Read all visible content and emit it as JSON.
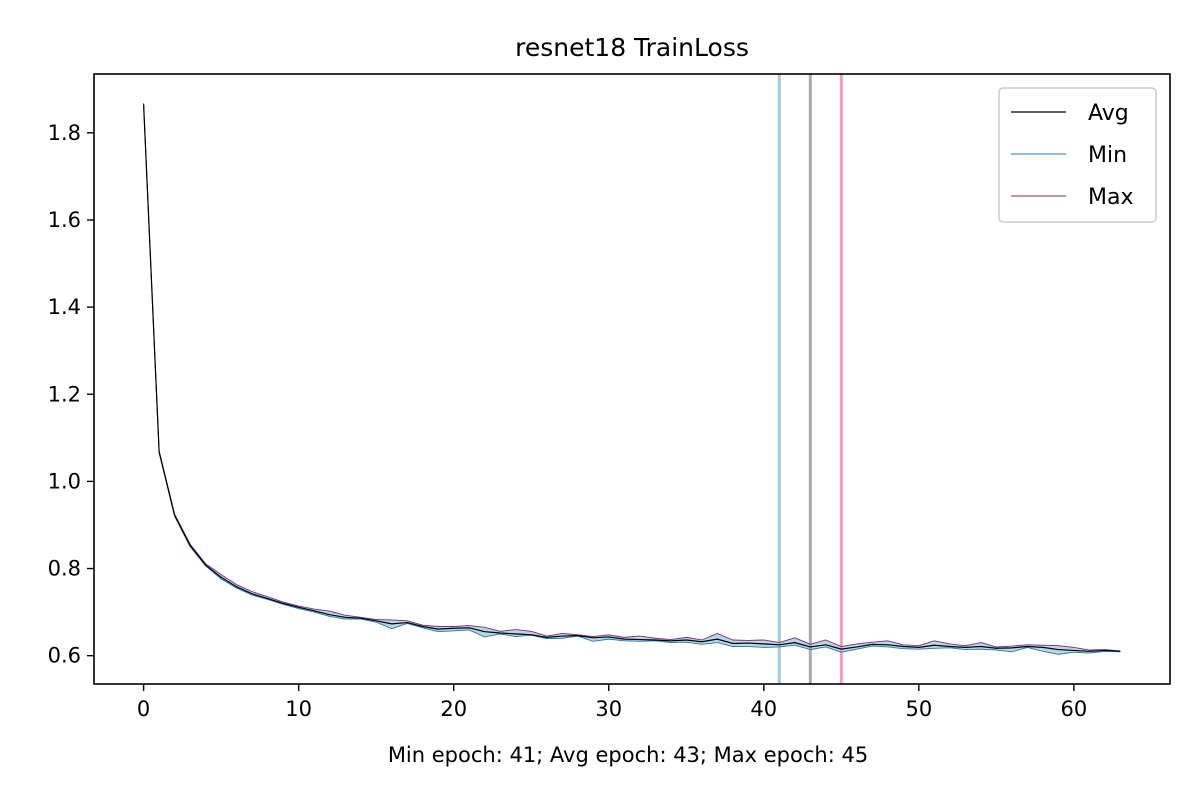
{
  "chart_data": {
    "type": "line",
    "title": "resnet18 TrainLoss",
    "xlabel": "Min epoch: 41; Avg epoch: 43; Max epoch: 45",
    "ylabel": "",
    "xlim": [
      -3.2,
      66.2
    ],
    "ylim": [
      0.535,
      1.935
    ],
    "xticks": [
      0,
      10,
      20,
      30,
      40,
      50,
      60
    ],
    "yticks": [
      0.6,
      0.8,
      1.0,
      1.2,
      1.4,
      1.6,
      1.8
    ],
    "xtick_labels": [
      "0",
      "10",
      "20",
      "30",
      "40",
      "50",
      "60"
    ],
    "ytick_labels": [
      "0.6",
      "0.8",
      "1.0",
      "1.2",
      "1.4",
      "1.6",
      "1.8"
    ],
    "grid": false,
    "legend_position": "top-right",
    "x": [
      0,
      1,
      2,
      3,
      4,
      5,
      6,
      7,
      8,
      9,
      10,
      11,
      12,
      13,
      14,
      15,
      16,
      17,
      18,
      19,
      20,
      21,
      22,
      23,
      24,
      25,
      26,
      27,
      28,
      29,
      30,
      31,
      32,
      33,
      34,
      35,
      36,
      37,
      38,
      39,
      40,
      41,
      42,
      43,
      44,
      45,
      46,
      47,
      48,
      49,
      50,
      51,
      52,
      53,
      54,
      55,
      56,
      57,
      58,
      59,
      60,
      61,
      62,
      63
    ],
    "series": [
      {
        "name": "Avg",
        "color": "#000000",
        "values": [
          1.865,
          1.068,
          0.922,
          0.853,
          0.808,
          0.78,
          0.758,
          0.742,
          0.731,
          0.72,
          0.711,
          0.703,
          0.694,
          0.688,
          0.686,
          0.68,
          0.673,
          0.676,
          0.667,
          0.661,
          0.663,
          0.664,
          0.655,
          0.652,
          0.65,
          0.648,
          0.642,
          0.645,
          0.646,
          0.641,
          0.643,
          0.638,
          0.637,
          0.636,
          0.634,
          0.636,
          0.632,
          0.638,
          0.628,
          0.629,
          0.627,
          0.625,
          0.63,
          0.62,
          0.625,
          0.615,
          0.62,
          0.626,
          0.625,
          0.621,
          0.619,
          0.624,
          0.621,
          0.619,
          0.621,
          0.617,
          0.618,
          0.621,
          0.619,
          0.614,
          0.612,
          0.61,
          0.612,
          0.61
        ]
      },
      {
        "name": "Min",
        "color": "#1f77b4",
        "values": [
          1.862,
          1.065,
          0.92,
          0.85,
          0.806,
          0.776,
          0.755,
          0.739,
          0.729,
          0.718,
          0.708,
          0.7,
          0.69,
          0.684,
          0.684,
          0.677,
          0.662,
          0.674,
          0.664,
          0.655,
          0.657,
          0.659,
          0.643,
          0.65,
          0.644,
          0.647,
          0.639,
          0.64,
          0.645,
          0.633,
          0.638,
          0.634,
          0.633,
          0.634,
          0.63,
          0.631,
          0.626,
          0.63,
          0.621,
          0.621,
          0.619,
          0.62,
          0.624,
          0.614,
          0.62,
          0.608,
          0.615,
          0.622,
          0.62,
          0.616,
          0.615,
          0.617,
          0.618,
          0.614,
          0.615,
          0.613,
          0.609,
          0.619,
          0.61,
          0.603,
          0.608,
          0.606,
          0.61,
          0.609
        ]
      },
      {
        "name": "Max",
        "color": "#7b2d6e",
        "values": [
          1.868,
          1.07,
          0.925,
          0.856,
          0.811,
          0.786,
          0.763,
          0.747,
          0.735,
          0.723,
          0.714,
          0.707,
          0.702,
          0.693,
          0.688,
          0.683,
          0.682,
          0.68,
          0.67,
          0.667,
          0.667,
          0.669,
          0.665,
          0.656,
          0.66,
          0.656,
          0.645,
          0.651,
          0.648,
          0.644,
          0.648,
          0.642,
          0.645,
          0.64,
          0.637,
          0.642,
          0.636,
          0.651,
          0.636,
          0.635,
          0.636,
          0.63,
          0.641,
          0.626,
          0.636,
          0.621,
          0.627,
          0.631,
          0.634,
          0.625,
          0.623,
          0.634,
          0.627,
          0.623,
          0.63,
          0.62,
          0.622,
          0.625,
          0.624,
          0.623,
          0.619,
          0.613,
          0.614,
          0.611
        ]
      }
    ],
    "vlines": [
      {
        "x": 41,
        "color": "#a6c8dc"
      },
      {
        "x": 43,
        "color": "#aaaaaa"
      },
      {
        "x": 45,
        "color": "#e9a3b8"
      }
    ],
    "fill_color": "#a6c8dc"
  }
}
